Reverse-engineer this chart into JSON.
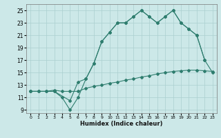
{
  "line1_x": [
    0,
    1,
    2,
    3,
    4,
    5,
    6,
    7,
    8,
    9,
    10,
    11,
    12,
    13,
    14,
    15,
    16,
    17,
    18,
    19,
    20,
    21,
    22,
    23
  ],
  "line1_y": [
    12,
    12,
    12,
    12,
    11,
    9,
    11,
    14,
    16.5,
    20,
    21.5,
    23,
    23,
    24,
    25,
    24,
    23,
    24,
    25,
    23,
    22,
    21,
    17,
    15
  ],
  "line2_x": [
    0,
    3,
    5,
    6,
    7,
    8,
    9,
    10,
    11,
    12,
    13,
    14,
    15,
    16,
    17,
    18,
    19,
    20,
    21,
    22
  ],
  "line2_y": [
    12,
    12,
    10.5,
    13.5,
    14,
    16.5,
    20,
    21.5,
    23,
    23,
    24,
    25,
    24,
    23,
    24,
    25,
    23,
    22,
    21,
    17
  ],
  "line3_x": [
    0,
    1,
    2,
    3,
    4,
    5,
    6,
    7,
    8,
    9,
    10,
    11,
    12,
    13,
    14,
    15,
    16,
    17,
    18,
    19,
    20,
    21,
    22,
    23
  ],
  "line3_y": [
    12,
    12,
    12,
    12.2,
    12,
    12,
    12,
    12.5,
    12.8,
    13,
    13.3,
    13.5,
    13.8,
    14,
    14.3,
    14.5,
    14.8,
    15,
    15.2,
    15.3,
    15.4,
    15.4,
    15.3,
    15.2
  ],
  "color": "#2e7d6e",
  "bg_color": "#cce8e8",
  "grid_color": "#aacfcf",
  "xlabel": "Humidex (Indice chaleur)",
  "ylim": [
    8.5,
    26
  ],
  "xlim": [
    -0.5,
    23.5
  ],
  "yticks": [
    9,
    11,
    13,
    15,
    17,
    19,
    21,
    23,
    25
  ],
  "xticks": [
    0,
    1,
    2,
    3,
    4,
    5,
    6,
    7,
    8,
    9,
    10,
    11,
    12,
    13,
    14,
    15,
    16,
    17,
    18,
    19,
    20,
    21,
    22,
    23
  ]
}
